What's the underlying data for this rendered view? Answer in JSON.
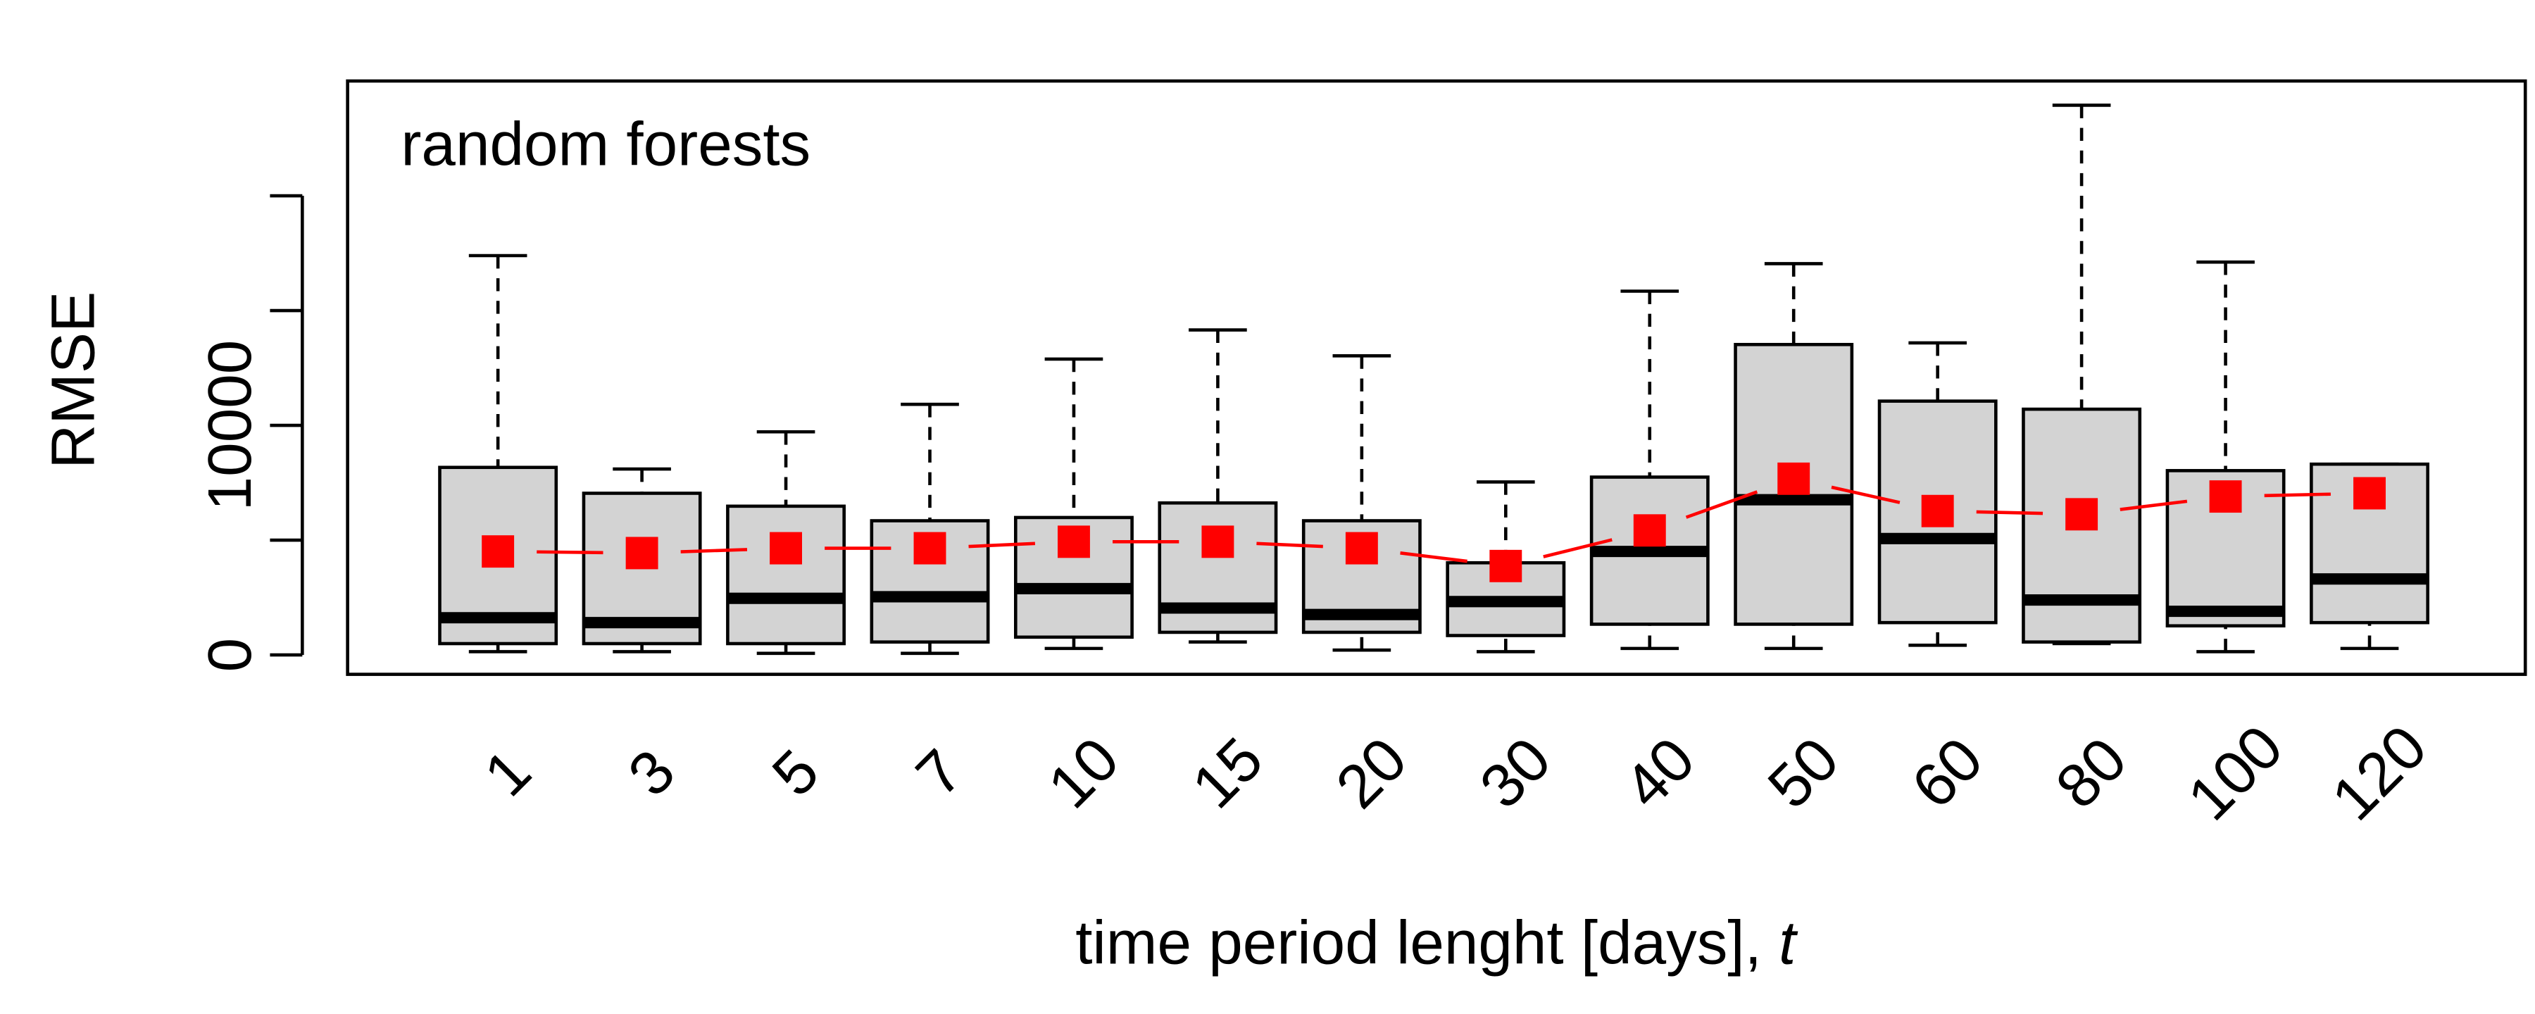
{
  "chart_data": {
    "type": "boxplot",
    "annotation": "random forests",
    "ylabel": "RMSE",
    "xlabel": "time period lenght [days],",
    "xlabel_var": "t",
    "categories": [
      "1",
      "3",
      "5",
      "7",
      "10",
      "15",
      "20",
      "30",
      "40",
      "50",
      "60",
      "80",
      "100",
      "120"
    ],
    "whisker_low": [
      141,
      141,
      70,
      70,
      282,
      563,
      211,
      141,
      282,
      282,
      423,
      493,
      141,
      282
    ],
    "q1": [
      493,
      493,
      493,
      563,
      775,
      986,
      986,
      845,
      1338,
      1338,
      1408,
      563,
      1268,
      1408
    ],
    "median": [
      1620,
      1408,
      2465,
      2535,
      2887,
      2042,
      1761,
      2324,
      4507,
      6761,
      5070,
      2394,
      1901,
      3310
    ],
    "q3": [
      8169,
      7042,
      6479,
      5845,
      5986,
      6620,
      5845,
      4014,
      7746,
      13521,
      11056,
      10704,
      8028,
      8310
    ],
    "whisker_high": [
      17394,
      8099,
      9718,
      10915,
      12887,
      14155,
      13028,
      7535,
      15845,
      17042,
      13592,
      23944,
      17113,
      8310
    ],
    "mean": [
      4507,
      4437,
      4648,
      4648,
      4930,
      4930,
      4648,
      3873,
      5423,
      7676,
      6268,
      6127,
      6901,
      7042
    ],
    "box_color": "#d3d3d3",
    "mean_color": "#ff0000",
    "ylim": [
      -845,
      25000
    ],
    "yticks": [
      0,
      10000
    ],
    "yticks_unlabeled": [
      5000,
      15000,
      20000
    ]
  }
}
